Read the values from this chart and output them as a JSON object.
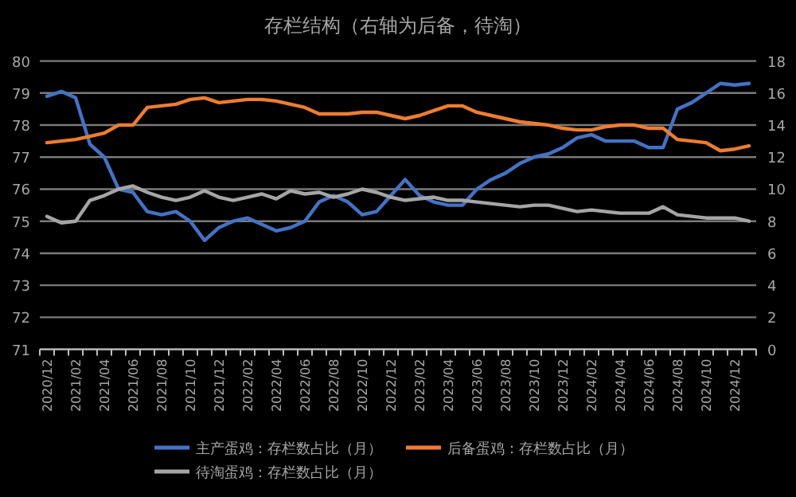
{
  "chart_data": {
    "type": "line",
    "title": "存栏结构（右轴为后备，待淘）",
    "categories": [
      "2020/12",
      null,
      "2021/02",
      null,
      "2021/04",
      null,
      "2021/06",
      null,
      "2021/08",
      null,
      "2021/10",
      null,
      "2021/12",
      null,
      "2022/02",
      null,
      "2022/04",
      null,
      "2022/06",
      null,
      "2022/08",
      null,
      "2022/10",
      null,
      "2022/12",
      null,
      "2023/02",
      null,
      "2023/04",
      null,
      "2023/06",
      null,
      "2023/08",
      null,
      "2023/10",
      null,
      "2023/12",
      null,
      "2024/02",
      null,
      "2024/04",
      null,
      "2024/06",
      null,
      "2024/08",
      null,
      "2024/10",
      null,
      "2024/12",
      null
    ],
    "series": [
      {
        "name": "主产蛋鸡：存栏数占比（月）",
        "color": "#4472c4",
        "values": [
          78.9,
          79.05,
          78.85,
          77.4,
          77.0,
          76.0,
          75.9,
          75.3,
          75.2,
          75.3,
          75.0,
          74.4,
          74.8,
          75.0,
          75.1,
          74.9,
          74.7,
          74.8,
          75.0,
          75.6,
          75.8,
          75.6,
          75.2,
          75.3,
          75.8,
          76.3,
          75.8,
          75.6,
          75.5,
          75.5,
          76.0,
          76.3,
          76.5,
          76.8,
          77.0,
          77.1,
          77.3,
          77.6,
          77.7,
          77.5,
          77.5,
          77.5,
          77.3,
          77.3,
          78.5,
          78.7,
          79.0,
          79.3,
          79.25,
          79.3
        ]
      },
      {
        "name": "后备蛋鸡：存栏数占比（月）",
        "color": "#ed7d31",
        "axis": "y2",
        "values": [
          12.9,
          13.0,
          13.1,
          13.3,
          13.5,
          14.0,
          14.0,
          15.1,
          15.2,
          15.3,
          15.6,
          15.7,
          15.4,
          15.5,
          15.6,
          15.6,
          15.5,
          15.3,
          15.1,
          14.7,
          14.7,
          14.7,
          14.8,
          14.8,
          14.6,
          14.4,
          14.6,
          14.9,
          15.2,
          15.2,
          14.8,
          14.6,
          14.4,
          14.2,
          14.1,
          14.0,
          13.8,
          13.7,
          13.7,
          13.9,
          14.0,
          14.0,
          13.8,
          13.8,
          13.1,
          13.0,
          12.9,
          12.4,
          12.5,
          12.7
        ]
      },
      {
        "name": "待淘蛋鸡：存栏数占比（月）",
        "color": "#a5a5a5",
        "axis": "y2",
        "values": [
          8.3,
          7.9,
          8.0,
          9.3,
          9.6,
          10.0,
          10.2,
          9.8,
          9.5,
          9.3,
          9.5,
          9.9,
          9.5,
          9.3,
          9.5,
          9.7,
          9.4,
          9.9,
          9.7,
          9.8,
          9.5,
          9.7,
          10.0,
          9.8,
          9.5,
          9.3,
          9.4,
          9.5,
          9.3,
          9.3,
          9.2,
          9.1,
          9.0,
          8.9,
          9.0,
          9.0,
          8.8,
          8.6,
          8.7,
          8.6,
          8.5,
          8.5,
          8.5,
          8.9,
          8.4,
          8.3,
          8.2,
          8.2,
          8.2,
          8.0
        ]
      }
    ],
    "ylim": [
      71,
      80
    ],
    "yticks": [
      71,
      72,
      73,
      74,
      75,
      76,
      77,
      78,
      79,
      80
    ],
    "y2lim": [
      0,
      18
    ],
    "y2ticks": [
      0,
      2,
      4,
      6,
      8,
      10,
      12,
      14,
      16,
      18
    ],
    "grid": "y",
    "legend": "bottom",
    "marker": "none",
    "line_style": "solid"
  }
}
